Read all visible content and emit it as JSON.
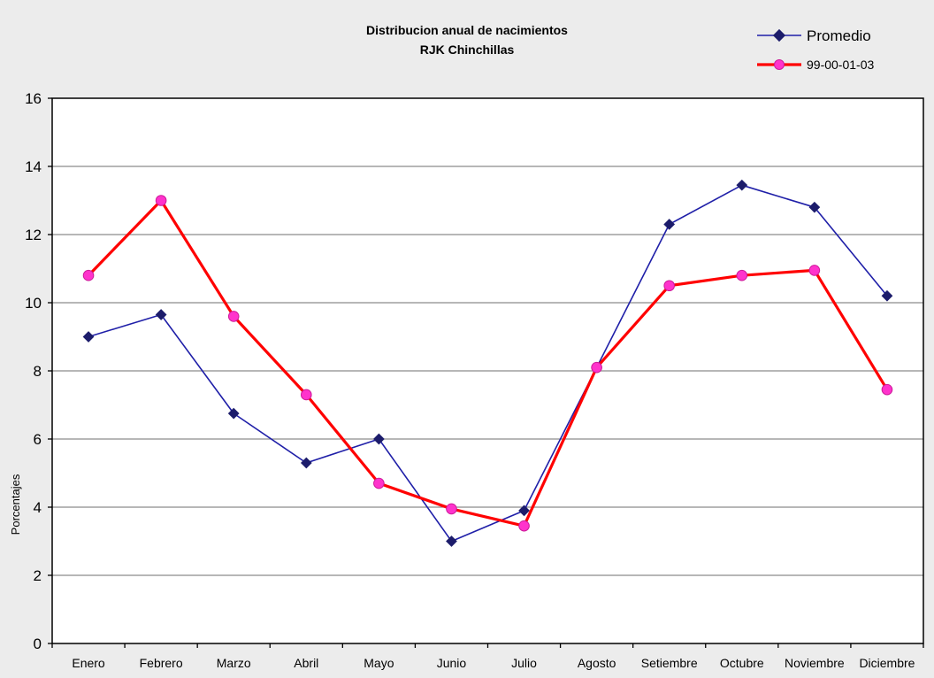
{
  "chart_data": {
    "type": "line",
    "title": "Distribucion anual de nacimientos",
    "subtitle": "RJK Chinchillas",
    "xlabel": "",
    "ylabel": "Porcentajes",
    "ylim": [
      0,
      16
    ],
    "yticks": [
      "0",
      "2",
      "4",
      "6",
      "8",
      "10",
      "12",
      "14",
      "16"
    ],
    "grid": true,
    "legend_position": "top-right",
    "categories": [
      "Enero",
      "Febrero",
      "Marzo",
      "Abril",
      "Mayo",
      "Junio",
      "Julio",
      "Agosto",
      "Setiembre",
      "Octubre",
      "Noviembre",
      "Diciembre"
    ],
    "series": [
      {
        "name": "Promedio",
        "color": "#1f1fa8",
        "marker_color": "#1c1c6b",
        "marker": "diamond",
        "values": [
          9.0,
          9.65,
          6.75,
          5.3,
          6.0,
          3.0,
          3.9,
          8.1,
          12.3,
          13.45,
          12.8,
          10.2
        ]
      },
      {
        "name": "99-00-01-03",
        "color": "#ff0000",
        "marker_color": "#ff33cc",
        "marker": "circle",
        "values": [
          10.8,
          13.0,
          9.6,
          7.3,
          4.7,
          3.95,
          3.45,
          8.1,
          10.5,
          10.8,
          10.95,
          7.45
        ]
      }
    ]
  }
}
